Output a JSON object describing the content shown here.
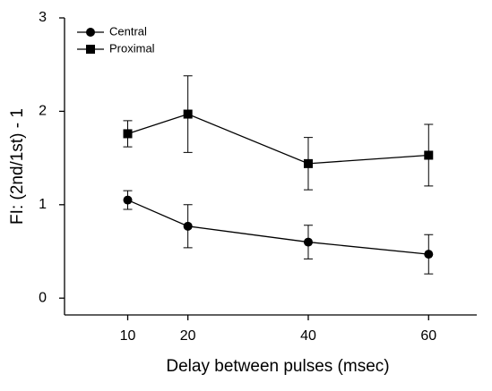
{
  "chart_data": {
    "type": "line",
    "x_label": "Delay between pulses (msec)",
    "y_label": "FI: (2nd/1st) - 1",
    "x": [
      10,
      20,
      40,
      60
    ],
    "series": [
      {
        "name": "Central",
        "color": "#000000",
        "marker": "circle",
        "values": [
          1.05,
          0.77,
          0.6,
          0.47
        ],
        "errors": [
          0.1,
          0.23,
          0.18,
          0.21
        ]
      },
      {
        "name": "Proximal",
        "color": "#000000",
        "marker": "square",
        "values": [
          1.76,
          1.97,
          1.44,
          1.53
        ],
        "errors": [
          0.14,
          0.41,
          0.28,
          0.33
        ]
      }
    ],
    "xlim": [
      -0.5,
      68
    ],
    "xticks": [
      10,
      20,
      40,
      60
    ],
    "ylim": [
      -0.18,
      3
    ],
    "yticks": [
      0,
      1,
      2,
      3
    ],
    "legend": "top-left"
  }
}
